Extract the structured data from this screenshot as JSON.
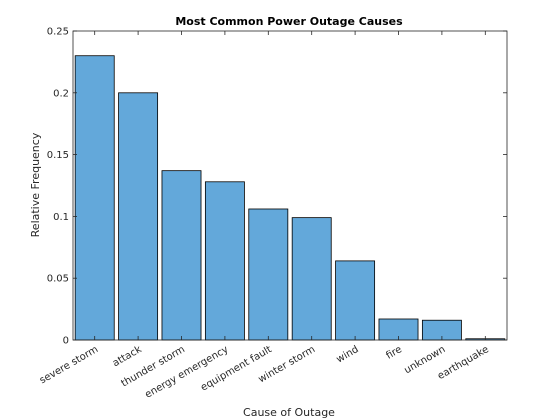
{
  "chart_data": {
    "type": "bar",
    "title": "Most Common Power Outage Causes",
    "xlabel": "Cause of Outage",
    "ylabel": "Relative Frequency",
    "categories": [
      "severe storm",
      "attack",
      "thunder storm",
      "energy emergency",
      "equipment fault",
      "winter storm",
      "wind",
      "fire",
      "unknown",
      "earthquake"
    ],
    "values": [
      0.23,
      0.2,
      0.137,
      0.128,
      0.106,
      0.099,
      0.064,
      0.017,
      0.016,
      0.001
    ],
    "ylim": [
      0,
      0.25
    ],
    "yticks": [
      0,
      0.05,
      0.1,
      0.15,
      0.2,
      0.25
    ],
    "ytick_labels": [
      "0",
      "0.05",
      "0.1",
      "0.15",
      "0.2",
      "0.25"
    ],
    "grid": false,
    "bar_color": "#63a8da",
    "bar_edge_color": "#000000"
  }
}
